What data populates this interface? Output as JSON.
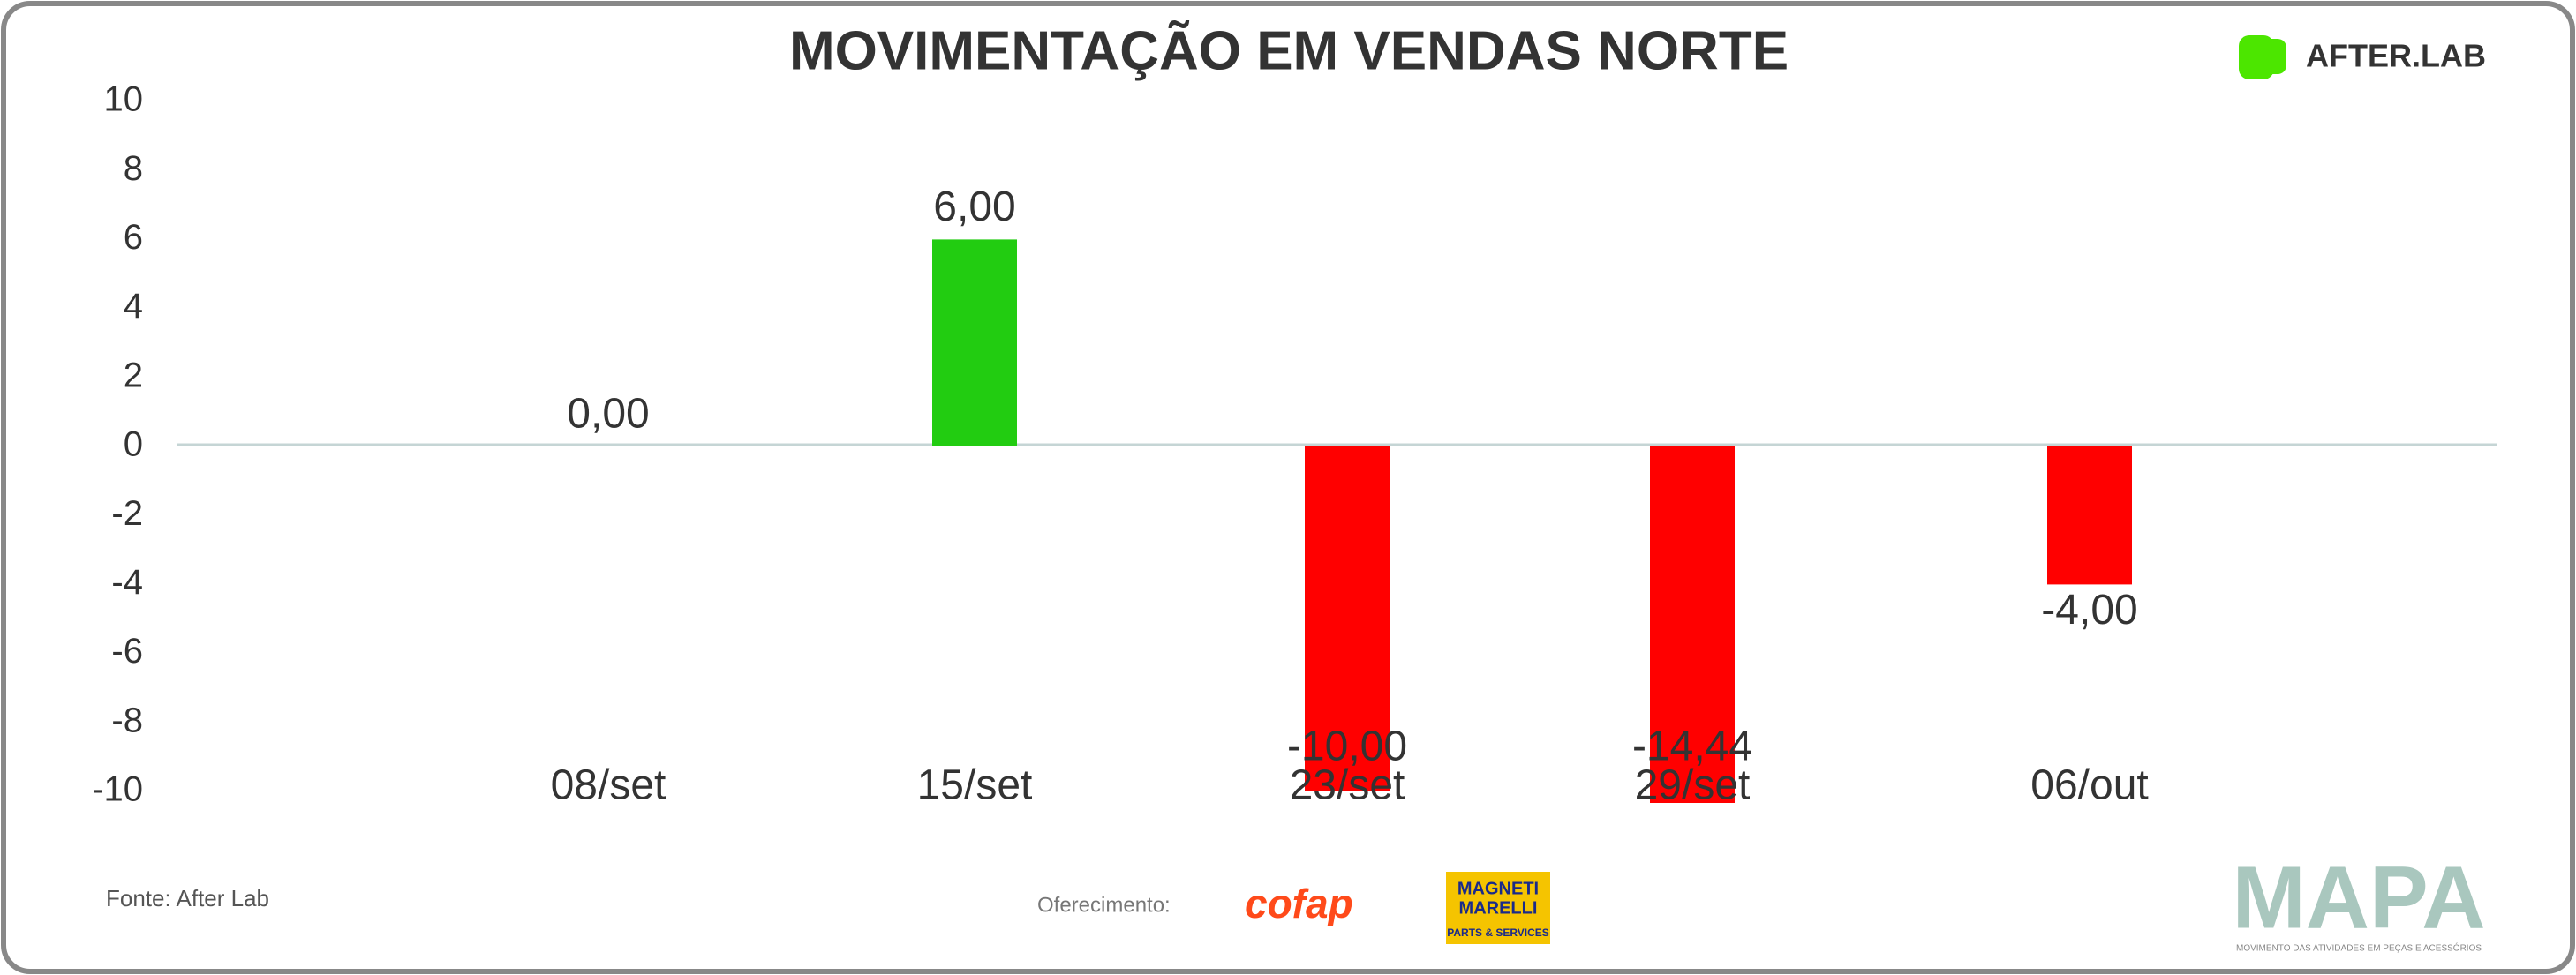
{
  "chart_data": {
    "type": "bar",
    "title": "MOVIMENTAÇÃO EM VENDAS NORTE",
    "categories": [
      "08/set",
      "15/set",
      "23/set",
      "29/set",
      "06/out"
    ],
    "values": [
      0,
      6,
      -10,
      -14.44,
      -4
    ],
    "value_labels": [
      "0,00",
      "6,00",
      "-10,00",
      "-14,44",
      "-4,00"
    ],
    "colors": [
      "#22cc11",
      "#22cc11",
      "#ff0000",
      "#ff0000",
      "#ff0000"
    ],
    "ylim": [
      -10,
      10
    ],
    "yticks": [
      -10,
      -8,
      -6,
      -4,
      -2,
      0,
      2,
      4,
      6,
      8,
      10
    ],
    "grid": false
  },
  "footer": {
    "source": "Fonte: After Lab",
    "sponsor": "Oferecimento:",
    "brand": "AFTER.LAB",
    "logo1": "cofap",
    "logo2_top": "MAGNETI",
    "logo2_mid": "MARELLI",
    "logo2_bottom": "PARTS & SERVICES",
    "mapa": "MAPA",
    "mapa_sub": "MOVIMENTO DAS ATIVIDADES EM PEÇAS E ACESSÓRIOS"
  }
}
